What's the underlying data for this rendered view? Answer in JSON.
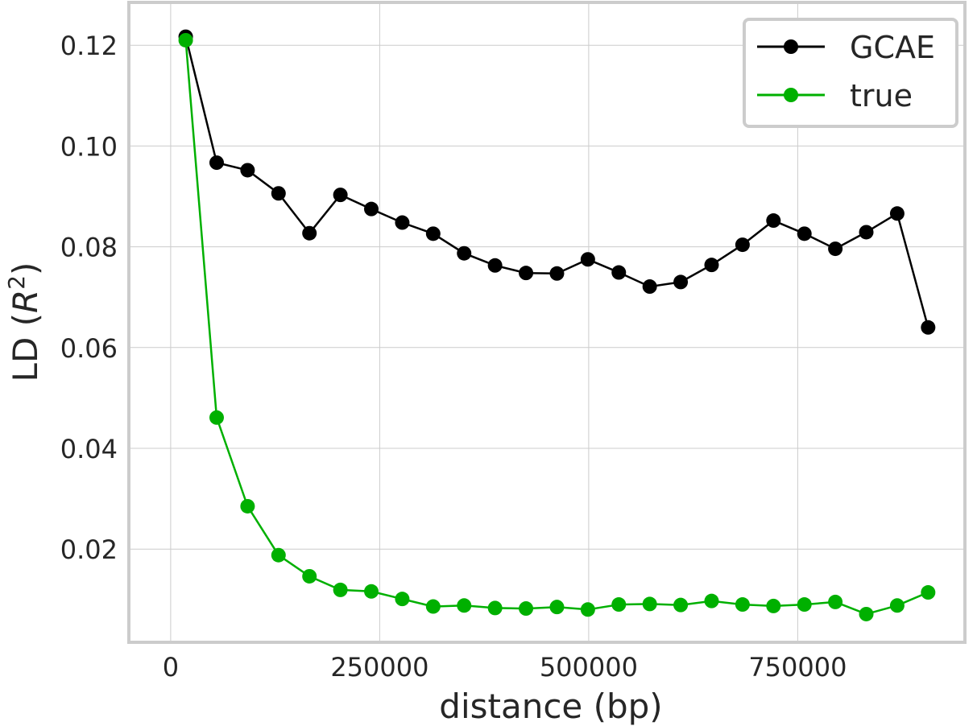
{
  "chart_data": {
    "type": "line",
    "title": "",
    "xlabel": "distance (bp)",
    "ylabel_main": "LD (",
    "ylabel_var": "R",
    "ylabel_sup": "2",
    "ylabel_close": ")",
    "xlim": [
      -50000,
      950000
    ],
    "ylim": [
      0.0015,
      0.1285
    ],
    "x_ticks": [
      0,
      250000,
      500000,
      750000
    ],
    "x_tick_labels": [
      "0",
      "250000",
      "500000",
      "750000"
    ],
    "y_ticks": [
      0.02,
      0.04,
      0.06,
      0.08,
      0.1,
      0.12
    ],
    "y_tick_labels": [
      "0.02",
      "0.04",
      "0.06",
      "0.08",
      "0.10",
      "0.12"
    ],
    "grid": true,
    "legend_position": "top-right",
    "x": [
      18000,
      55000,
      92000,
      129000,
      166000,
      203000,
      240000,
      277000,
      314000,
      351000,
      388000,
      425000,
      462000,
      499000,
      536000,
      573000,
      610000,
      647000,
      684000,
      721000,
      758000,
      795000,
      832000,
      869000,
      906000
    ],
    "series": [
      {
        "name": "GCAE",
        "color": "#000000",
        "values": [
          0.1217,
          0.0967,
          0.0952,
          0.0906,
          0.0827,
          0.0903,
          0.0875,
          0.0848,
          0.0826,
          0.0787,
          0.0763,
          0.0748,
          0.0747,
          0.0775,
          0.0749,
          0.0721,
          0.073,
          0.0764,
          0.0804,
          0.0852,
          0.0826,
          0.0796,
          0.0829,
          0.0866,
          0.064
        ]
      },
      {
        "name": "true",
        "color": "#00b000",
        "values": [
          0.121,
          0.0461,
          0.0285,
          0.0188,
          0.0146,
          0.0119,
          0.0116,
          0.0101,
          0.0086,
          0.0088,
          0.0083,
          0.0082,
          0.0085,
          0.008,
          0.009,
          0.0091,
          0.0089,
          0.0097,
          0.009,
          0.0087,
          0.009,
          0.0095,
          0.0071,
          0.0088,
          0.0114
        ]
      }
    ]
  }
}
